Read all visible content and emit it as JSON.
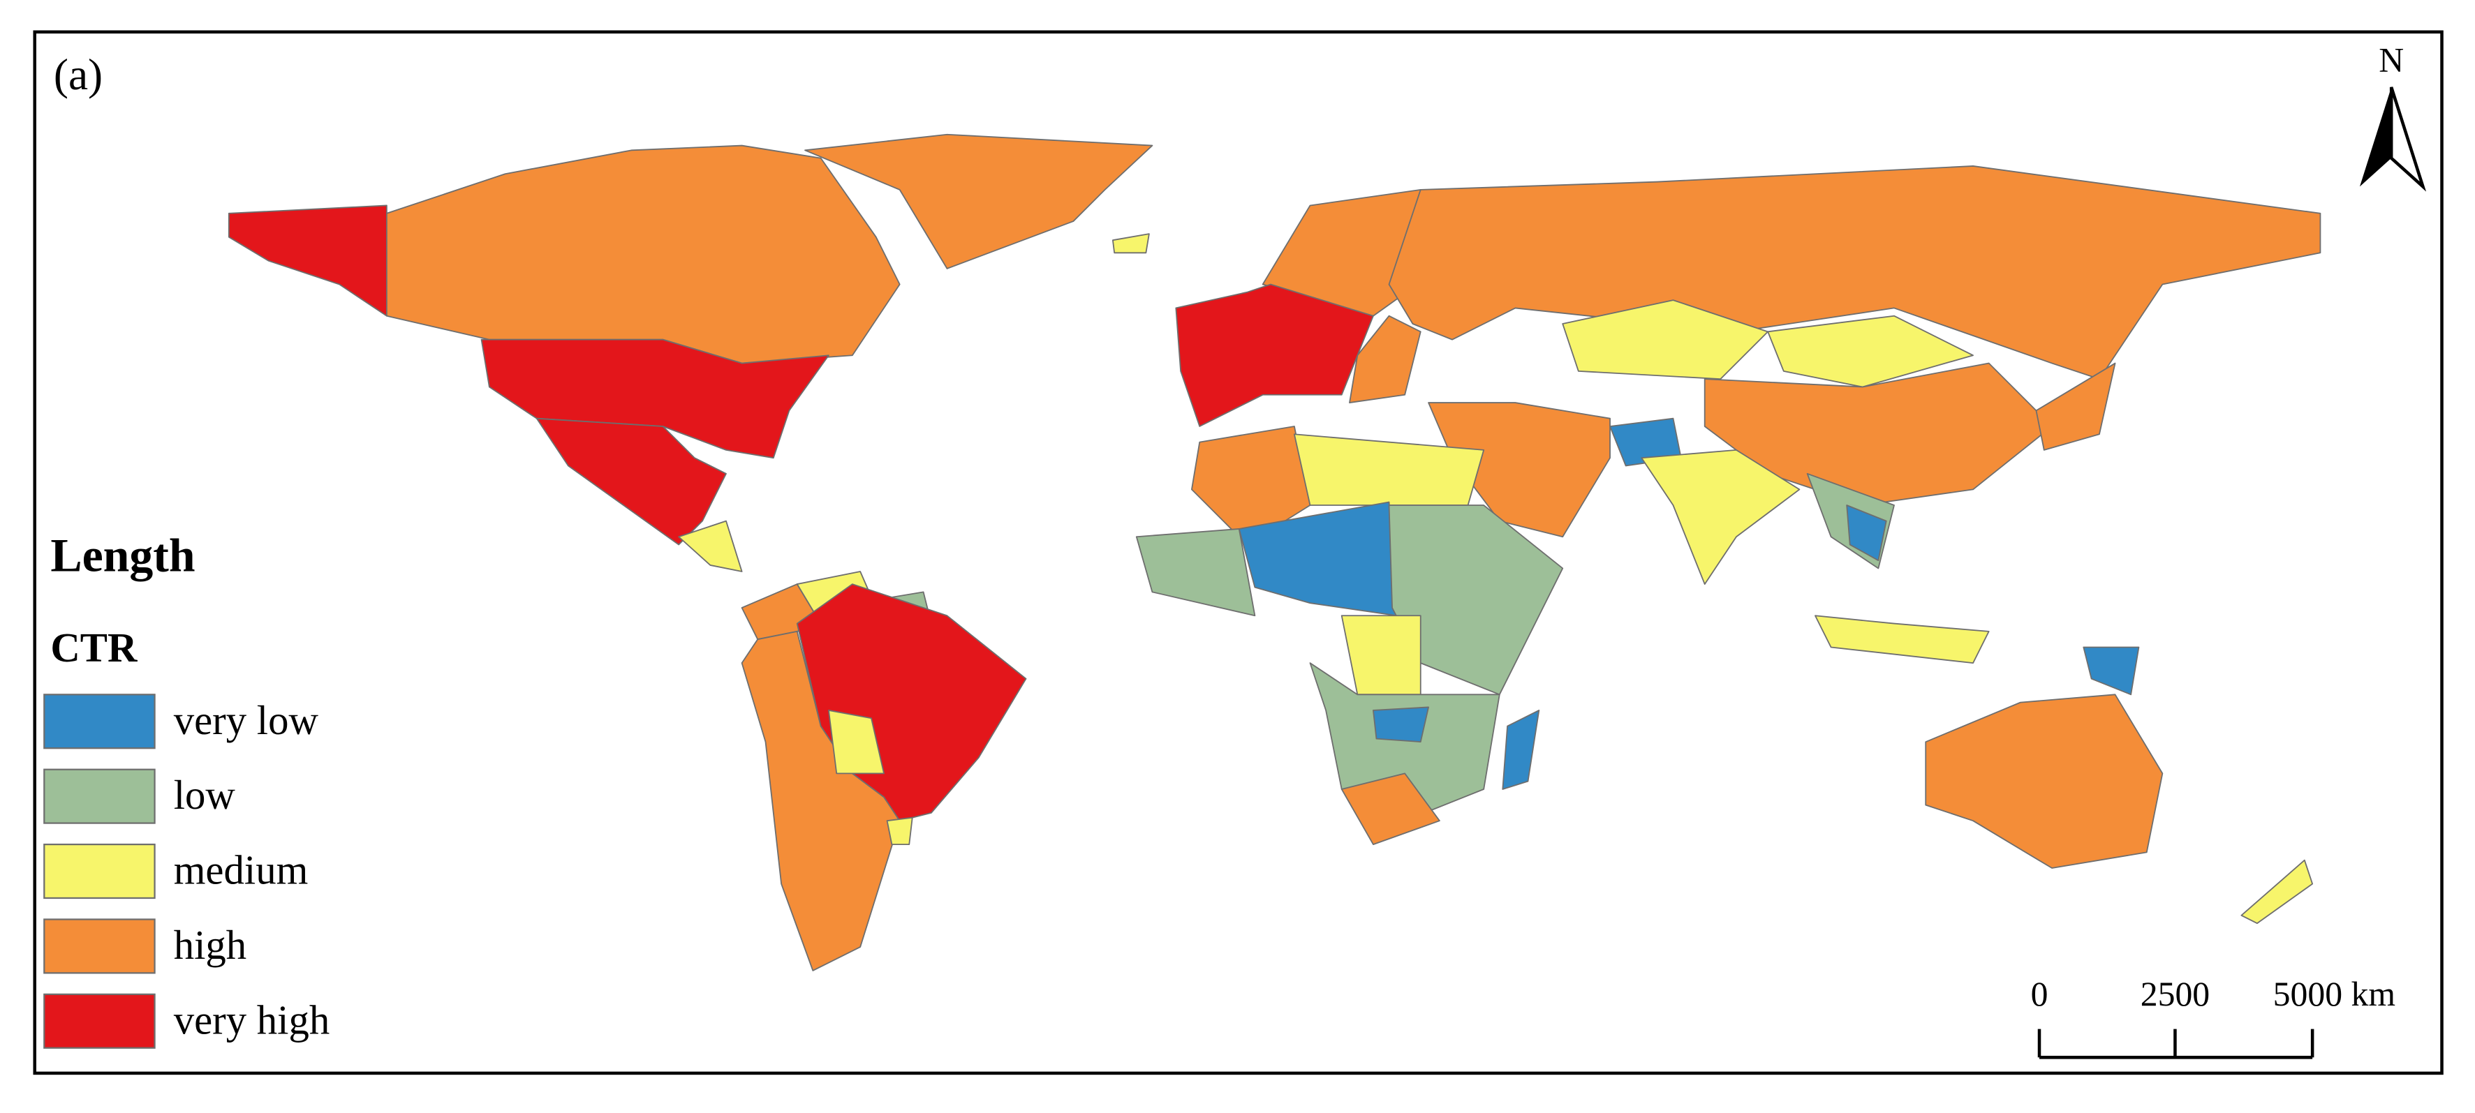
{
  "panel_label": "(a)",
  "north_label": "N",
  "legend": {
    "title": "Length",
    "subtitle": "CTR",
    "items": [
      {
        "label": "very low",
        "color": "#3189c6"
      },
      {
        "label": "low",
        "color": "#9dbf98"
      },
      {
        "label": "medium",
        "color": "#f7f56b"
      },
      {
        "label": "high",
        "color": "#f48d38"
      },
      {
        "label": "very high",
        "color": "#e3161b"
      }
    ]
  },
  "scale_bar": {
    "labels": [
      "0",
      "2500",
      "5000 km"
    ]
  }
}
